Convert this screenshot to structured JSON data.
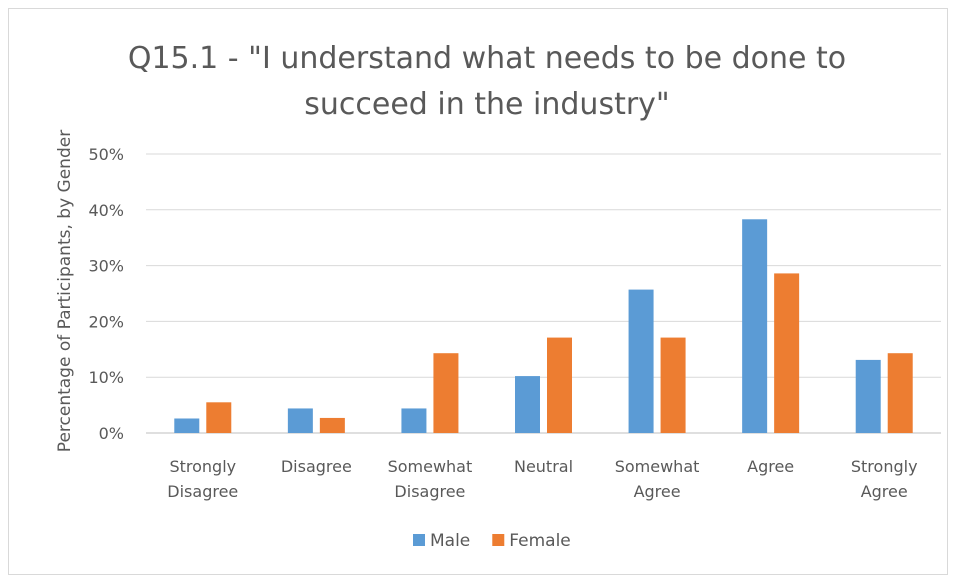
{
  "chart_data": {
    "type": "bar",
    "title_lines": [
      "Q15.1 - \"I understand what needs to be done to",
      "succeed in the industry\""
    ],
    "ylabel": "Percentage of Participants, by Gender",
    "xlabel": "",
    "ylim": [
      0,
      50
    ],
    "yticks": [
      0,
      10,
      20,
      30,
      40,
      50
    ],
    "ytick_labels": [
      "0%",
      "10%",
      "20%",
      "30%",
      "40%",
      "50%"
    ],
    "categories": [
      [
        "Strongly",
        "Disagree"
      ],
      [
        "Disagree"
      ],
      [
        "Somewhat",
        "Disagree"
      ],
      [
        "Neutral"
      ],
      [
        "Somewhat",
        "Agree"
      ],
      [
        "Agree"
      ],
      [
        "Strongly",
        "Agree"
      ]
    ],
    "series": [
      {
        "name": "Male",
        "color": "#5b9bd5",
        "values": [
          2.6,
          4.4,
          4.4,
          10.2,
          25.7,
          38.3,
          13.1
        ]
      },
      {
        "name": "Female",
        "color": "#ed7d31",
        "values": [
          5.5,
          2.7,
          14.3,
          17.1,
          17.1,
          28.6,
          14.3
        ]
      }
    ],
    "grid": true,
    "legend_position": "bottom"
  }
}
